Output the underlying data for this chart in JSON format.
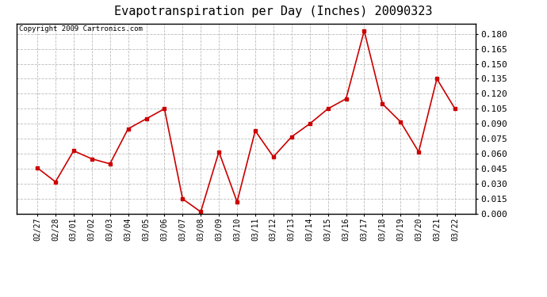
{
  "title": "Evapotranspiration per Day (Inches) 20090323",
  "copyright": "Copyright 2009 Cartronics.com",
  "labels": [
    "02/27",
    "02/28",
    "03/01",
    "03/02",
    "03/03",
    "03/04",
    "03/05",
    "03/06",
    "03/07",
    "03/08",
    "03/09",
    "03/10",
    "03/11",
    "03/12",
    "03/13",
    "03/14",
    "03/15",
    "03/16",
    "03/17",
    "03/18",
    "03/19",
    "03/20",
    "03/21",
    "03/22"
  ],
  "values": [
    0.046,
    0.032,
    0.063,
    0.055,
    0.05,
    0.085,
    0.095,
    0.105,
    0.015,
    0.002,
    0.062,
    0.012,
    0.083,
    0.057,
    0.077,
    0.09,
    0.105,
    0.115,
    0.183,
    0.11,
    0.092,
    0.062,
    0.135,
    0.105
  ],
  "line_color": "#cc0000",
  "marker_color": "#cc0000",
  "bg_color": "#ffffff",
  "grid_color": "#bbbbbb",
  "ylim": [
    0.0,
    0.19
  ],
  "yticks": [
    0.0,
    0.015,
    0.03,
    0.045,
    0.06,
    0.075,
    0.09,
    0.105,
    0.12,
    0.135,
    0.15,
    0.165,
    0.18
  ],
  "title_fontsize": 11,
  "copyright_fontsize": 6.5,
  "tick_fontsize": 7,
  "ytick_fontsize": 8
}
